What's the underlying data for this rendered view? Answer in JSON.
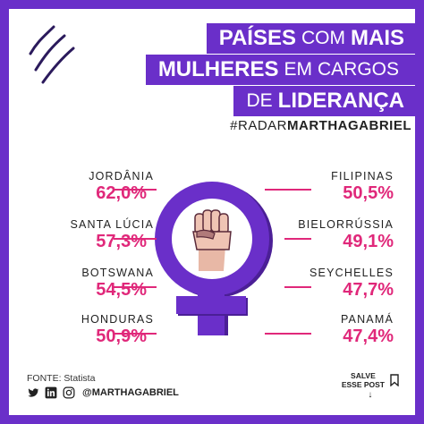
{
  "header": {
    "line1_bold_a": "PAÍSES",
    "line1_light": "COM",
    "line1_bold_b": "MAIS",
    "line2_bold": "MULHERES",
    "line2_light_a": "EM",
    "line2_light_b": "CARGOS",
    "line3_light": "DE",
    "line3_bold": "LIDERANÇA",
    "hashtag_prefix": "#RADAR",
    "hashtag_main": "MARTHAGABRIEL"
  },
  "stats_left": [
    {
      "country": "JORDÂNIA",
      "percent": "62,0%"
    },
    {
      "country": "SANTA LÚCIA",
      "percent": "57,3%"
    },
    {
      "country": "BOTSWANA",
      "percent": "54,5%"
    },
    {
      "country": "HONDURAS",
      "percent": "50,9%"
    }
  ],
  "stats_right": [
    {
      "country": "FILIPINAS",
      "percent": "50,5%"
    },
    {
      "country": "BIELORRÚSSIA",
      "percent": "49,1%"
    },
    {
      "country": "SEYCHELLES",
      "percent": "47,7%"
    },
    {
      "country": "PANAMÁ",
      "percent": "47,4%"
    }
  ],
  "footer": {
    "source": "FONTE: Statista",
    "handle": "@MARTHAGABRIEL",
    "save_line1": "SALVE",
    "save_line2": "ESSE POST"
  },
  "icons": [
    "brand-logo-icon",
    "venus-symbol-icon",
    "raised-fist-icon",
    "twitter-icon",
    "linkedin-icon",
    "instagram-icon",
    "bookmark-icon",
    "arrow-down-icon"
  ],
  "colors": {
    "frame": "#6a2fc9",
    "accent": "#e0287a",
    "symbol": "#6a2fc9",
    "symbol_dark": "#4b1f96"
  }
}
